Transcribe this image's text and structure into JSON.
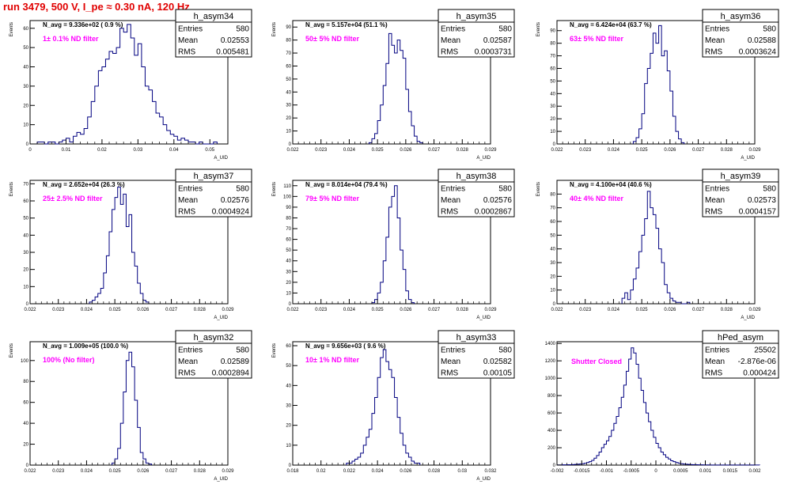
{
  "canvas_title": "run 3479,   500 V, I_pe ≈ 0.30 nA, 120 Hz",
  "colors": {
    "title": "#e00000",
    "filter_label": "#ff00ff",
    "hist_line": "#000080",
    "axis": "#000000"
  },
  "chart_data": [
    {
      "type": "histogram",
      "name": "h_asym34",
      "stats": [
        [
          "Entries",
          "580"
        ],
        [
          "Mean",
          "0.02553"
        ],
        [
          "RMS",
          "0.005481"
        ]
      ],
      "navg_label": "N_avg = 9.336e+02 ( 0.9 %)",
      "filter_label": "1± 0.1% ND filter",
      "ylabel": "Events",
      "xlabel": "A_UID",
      "xlim": [
        0,
        0.055
      ],
      "ylim": [
        0,
        64
      ],
      "xticks": [
        0,
        0.01,
        0.02,
        0.03,
        0.04,
        0.05
      ],
      "xtick_labels": [
        "0",
        "0.01",
        "0.02",
        "0.03",
        "0.04",
        "0.05"
      ],
      "yticks": [
        0,
        10,
        20,
        30,
        40,
        50,
        60
      ],
      "bins": {
        "start": 0.002,
        "width": 0.001,
        "counts": [
          1,
          1,
          0,
          1,
          1,
          0,
          1,
          2,
          3,
          1,
          4,
          6,
          5,
          8,
          14,
          22,
          30,
          38,
          40,
          44,
          48,
          47,
          50,
          60,
          58,
          62,
          55,
          46,
          52,
          40,
          30,
          28,
          22,
          16,
          14,
          10,
          7,
          5,
          4,
          2,
          3,
          2,
          1,
          1,
          0,
          1,
          0,
          0,
          0,
          1
        ]
      }
    },
    {
      "type": "histogram",
      "name": "h_asym35",
      "stats": [
        [
          "Entries",
          "580"
        ],
        [
          "Mean",
          "0.02587"
        ],
        [
          "RMS",
          "0.0003731"
        ]
      ],
      "navg_label": "N_avg = 5.157e+04 (51.1 %)",
      "filter_label": "50± 5% ND filter",
      "ylabel": "Events",
      "xlabel": "A_UID",
      "xlim": [
        0.022,
        0.029
      ],
      "ylim": [
        0,
        95
      ],
      "xticks": [
        0.022,
        0.023,
        0.024,
        0.025,
        0.026,
        0.027,
        0.028,
        0.029
      ],
      "xtick_labels": [
        "0.022",
        "0.023",
        "0.024",
        "0.025",
        "0.026",
        "0.027",
        "0.028",
        "0.029"
      ],
      "yticks": [
        0,
        10,
        20,
        30,
        40,
        50,
        60,
        70,
        80,
        90
      ],
      "bins": {
        "start": 0.0247,
        "width": 0.0001,
        "counts": [
          1,
          4,
          8,
          18,
          30,
          45,
          62,
          85,
          76,
          70,
          80,
          72,
          66,
          42,
          25,
          14,
          6,
          2,
          1
        ]
      }
    },
    {
      "type": "histogram",
      "name": "h_asym36",
      "stats": [
        [
          "Entries",
          "580"
        ],
        [
          "Mean",
          "0.02588"
        ],
        [
          "RMS",
          "0.0003624"
        ]
      ],
      "navg_label": "N_avg = 6.424e+04 (63.7 %)",
      "filter_label": "63± 5% ND filter",
      "ylabel": "Events",
      "xlabel": "A_UID",
      "xlim": [
        0.022,
        0.029
      ],
      "ylim": [
        0,
        98
      ],
      "xticks": [
        0.022,
        0.023,
        0.024,
        0.025,
        0.026,
        0.027,
        0.028,
        0.029
      ],
      "xtick_labels": [
        "0.022",
        "0.023",
        "0.024",
        "0.025",
        "0.026",
        "0.027",
        "0.028",
        "0.029"
      ],
      "yticks": [
        0,
        10,
        20,
        30,
        40,
        50,
        60,
        70,
        80,
        90
      ],
      "bins": {
        "start": 0.0247,
        "width": 0.0001,
        "counts": [
          2,
          5,
          12,
          24,
          48,
          60,
          72,
          88,
          80,
          94,
          70,
          74,
          58,
          42,
          22,
          10,
          4,
          1
        ]
      }
    },
    {
      "type": "histogram",
      "name": "h_asym37",
      "stats": [
        [
          "Entries",
          "580"
        ],
        [
          "Mean",
          "0.02576"
        ],
        [
          "RMS",
          "0.0004924"
        ]
      ],
      "navg_label": "N_avg = 2.652e+04 (26.3 %)",
      "filter_label": "25± 2.5% ND filter",
      "ylabel": "Events",
      "xlabel": "A_UID",
      "xlim": [
        0.022,
        0.029
      ],
      "ylim": [
        0,
        72
      ],
      "xticks": [
        0.022,
        0.023,
        0.024,
        0.025,
        0.026,
        0.027,
        0.028,
        0.029
      ],
      "xtick_labels": [
        "0.022",
        "0.023",
        "0.024",
        "0.025",
        "0.026",
        "0.027",
        "0.028",
        "0.029"
      ],
      "yticks": [
        0,
        10,
        20,
        30,
        40,
        50,
        60,
        70
      ],
      "bins": {
        "start": 0.0241,
        "width": 0.0001,
        "counts": [
          1,
          2,
          4,
          6,
          9,
          18,
          28,
          42,
          55,
          62,
          68,
          58,
          64,
          45,
          52,
          30,
          22,
          12,
          6,
          2,
          1
        ]
      }
    },
    {
      "type": "histogram",
      "name": "h_asym38",
      "stats": [
        [
          "Entries",
          "580"
        ],
        [
          "Mean",
          "0.02576"
        ],
        [
          "RMS",
          "0.0002867"
        ]
      ],
      "navg_label": "N_avg = 8.014e+04 (79.4 %)",
      "filter_label": "79± 5% ND filter",
      "ylabel": "Events",
      "xlabel": "A_UID",
      "xlim": [
        0.022,
        0.029
      ],
      "ylim": [
        0,
        115
      ],
      "xticks": [
        0.022,
        0.023,
        0.024,
        0.025,
        0.026,
        0.027,
        0.028,
        0.029
      ],
      "xtick_labels": [
        "0.022",
        "0.023",
        "0.024",
        "0.025",
        "0.026",
        "0.027",
        "0.028",
        "0.029"
      ],
      "yticks": [
        0,
        10,
        20,
        30,
        40,
        50,
        60,
        70,
        80,
        90,
        100,
        110
      ],
      "bins": {
        "start": 0.0248,
        "width": 0.0001,
        "counts": [
          1,
          4,
          10,
          20,
          40,
          62,
          90,
          100,
          110,
          80,
          50,
          32,
          12,
          4,
          1
        ]
      }
    },
    {
      "type": "histogram",
      "name": "h_asym39",
      "stats": [
        [
          "Entries",
          "580"
        ],
        [
          "Mean",
          "0.02573"
        ],
        [
          "RMS",
          "0.0004157"
        ]
      ],
      "navg_label": "N_avg = 4.100e+04 (40.6 %)",
      "filter_label": "40± 4% ND filter",
      "ylabel": "Events",
      "xlabel": "A_UID",
      "xlim": [
        0.022,
        0.029
      ],
      "ylim": [
        0,
        90
      ],
      "xticks": [
        0.022,
        0.023,
        0.024,
        0.025,
        0.026,
        0.027,
        0.028,
        0.029
      ],
      "xtick_labels": [
        "0.022",
        "0.023",
        "0.024",
        "0.025",
        "0.026",
        "0.027",
        "0.028",
        "0.029"
      ],
      "yticks": [
        0,
        10,
        20,
        30,
        40,
        50,
        60,
        70,
        80
      ],
      "bins": {
        "start": 0.0243,
        "width": 0.0001,
        "counts": [
          4,
          8,
          3,
          10,
          18,
          26,
          38,
          50,
          62,
          82,
          70,
          65,
          55,
          40,
          30,
          14,
          8,
          4,
          2,
          1,
          1,
          0,
          0,
          1
        ]
      }
    },
    {
      "type": "histogram",
      "name": "h_asym32",
      "stats": [
        [
          "Entries",
          "580"
        ],
        [
          "Mean",
          "0.02589"
        ],
        [
          "RMS",
          "0.0002894"
        ]
      ],
      "navg_label": "N_avg = 1.009e+05 (100.0 %)",
      "filter_label": "100% (No filter)",
      "ylabel": "Events",
      "xlabel": "A_UID",
      "xlim": [
        0.022,
        0.029
      ],
      "ylim": [
        0,
        118
      ],
      "xticks": [
        0.022,
        0.023,
        0.024,
        0.025,
        0.026,
        0.027,
        0.028,
        0.029
      ],
      "xtick_labels": [
        "0.022",
        "0.023",
        "0.024",
        "0.025",
        "0.026",
        "0.027",
        "0.028",
        "0.029"
      ],
      "yticks": [
        0,
        20,
        40,
        60,
        80,
        100
      ],
      "bins": {
        "start": 0.0249,
        "width": 0.0001,
        "counts": [
          2,
          6,
          16,
          40,
          70,
          100,
          108,
          94,
          62,
          36,
          12,
          6,
          2,
          1
        ]
      }
    },
    {
      "type": "histogram",
      "name": "h_asym33",
      "stats": [
        [
          "Entries",
          "580"
        ],
        [
          "Mean",
          "0.02582"
        ],
        [
          "RMS",
          "0.00105"
        ]
      ],
      "navg_label": "N_avg = 9.656e+03 ( 9.6 %)",
      "filter_label": "10± 1% ND filter",
      "ylabel": "Events",
      "xlabel": "A_UID",
      "xlim": [
        0.018,
        0.032
      ],
      "ylim": [
        0,
        62
      ],
      "xticks": [
        0.018,
        0.02,
        0.022,
        0.024,
        0.026,
        0.028,
        0.03,
        0.032
      ],
      "xtick_labels": [
        "0.018",
        "0.02",
        "0.022",
        "0.024",
        "0.026",
        "0.028",
        "0.03",
        "0.032"
      ],
      "yticks": [
        0,
        10,
        20,
        30,
        40,
        50,
        60
      ],
      "bins": {
        "start": 0.0218,
        "width": 0.0002,
        "counts": [
          1,
          1,
          2,
          3,
          4,
          6,
          10,
          14,
          18,
          26,
          34,
          44,
          54,
          58,
          52,
          48,
          44,
          34,
          24,
          16,
          10,
          6,
          4,
          2,
          1,
          1
        ]
      }
    },
    {
      "type": "histogram",
      "name": "hPed_asym",
      "stats": [
        [
          "Entries",
          "25502"
        ],
        [
          "Mean",
          "-2.876e-06"
        ],
        [
          "RMS",
          "0.000424"
        ]
      ],
      "navg_label": "",
      "filter_label": "Shutter Closed",
      "ylabel": "",
      "xlabel": "",
      "xlim": [
        -0.002,
        0.002
      ],
      "ylim": [
        0,
        1420
      ],
      "xticks": [
        -0.002,
        -0.0015,
        -0.001,
        -0.0005,
        0,
        0.0005,
        0.001,
        0.0015,
        0.002
      ],
      "xtick_labels": [
        "-0.002",
        "-0.0015",
        "-0.001",
        "-0.0005",
        "0",
        "0.0005",
        "0.001",
        "0.0015",
        "0.002"
      ],
      "yticks": [
        0,
        200,
        400,
        600,
        800,
        1000,
        1200,
        1400
      ],
      "bins": {
        "start": -0.002,
        "width": 5e-05,
        "counts": [
          2,
          2,
          3,
          3,
          4,
          5,
          6,
          8,
          10,
          12,
          16,
          22,
          30,
          40,
          55,
          80,
          110,
          150,
          200,
          240,
          280,
          330,
          400,
          480,
          560,
          660,
          780,
          920,
          1080,
          1220,
          1350,
          1290,
          1160,
          1000,
          860,
          720,
          600,
          500,
          400,
          320,
          250,
          200,
          150,
          120,
          90,
          70,
          50,
          40,
          30,
          22,
          16,
          12,
          10,
          8,
          6,
          5,
          4,
          3,
          3,
          2,
          2,
          2,
          1,
          1,
          1,
          1,
          1,
          1,
          1,
          1,
          1,
          1,
          1,
          1,
          1,
          1,
          1,
          1,
          1,
          1,
          1,
          1
        ]
      }
    }
  ]
}
